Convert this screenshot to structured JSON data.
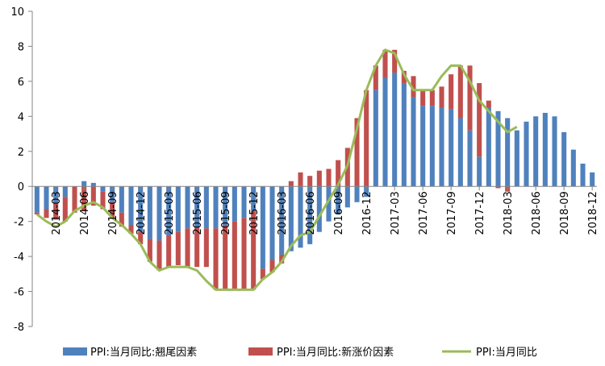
{
  "chart_data": {
    "type": "bar",
    "stacked": true,
    "ylim": [
      -8,
      10
    ],
    "ytick_values": [
      -8,
      -6,
      -4,
      -2,
      0,
      2,
      4,
      6,
      8,
      10
    ],
    "ytick_labels": [
      "-8",
      "-6",
      "-4",
      "-2",
      "0",
      "2",
      "4",
      "6",
      "8",
      "10"
    ],
    "grid": false,
    "legend_position": "bottom",
    "x_tick_labels": [
      "2014-03",
      "2014-06",
      "2014-09",
      "2014-12",
      "2015-03",
      "2015-06",
      "2015-09",
      "2015-12",
      "2016-03",
      "2016-06",
      "2016-09",
      "2016-12",
      "2017-03",
      "2017-06",
      "2017-09",
      "2017-12",
      "2018-03",
      "2018-06",
      "2018-09",
      "2018-12"
    ],
    "categories": [
      "2014-01",
      "2014-02",
      "2014-03",
      "2014-04",
      "2014-05",
      "2014-06",
      "2014-07",
      "2014-08",
      "2014-09",
      "2014-10",
      "2014-11",
      "2014-12",
      "2015-01",
      "2015-02",
      "2015-03",
      "2015-04",
      "2015-05",
      "2015-06",
      "2015-07",
      "2015-08",
      "2015-09",
      "2015-10",
      "2015-11",
      "2015-12",
      "2016-01",
      "2016-02",
      "2016-03",
      "2016-04",
      "2016-05",
      "2016-06",
      "2016-07",
      "2016-08",
      "2016-09",
      "2016-10",
      "2016-11",
      "2016-12",
      "2017-01",
      "2017-02",
      "2017-03",
      "2017-04",
      "2017-05",
      "2017-06",
      "2017-07",
      "2017-08",
      "2017-09",
      "2017-10",
      "2017-11",
      "2017-12",
      "2018-01",
      "2018-02",
      "2018-03",
      "2018-04",
      "2018-05",
      "2018-06",
      "2018-07",
      "2018-08",
      "2018-09",
      "2018-10",
      "2018-11",
      "2018-12"
    ],
    "series": [
      {
        "name": "PPI:当月同比:翘尾因素",
        "kind": "bar",
        "color": "#4F81BD",
        "values": [
          -1.5,
          -1.3,
          -1.0,
          -0.6,
          0.0,
          0.3,
          0.2,
          -0.3,
          -0.9,
          -1.5,
          -2.2,
          -2.6,
          -3.0,
          -3.1,
          -2.8,
          -2.6,
          -2.4,
          -2.3,
          -2.4,
          -2.4,
          -2.2,
          -2.0,
          -1.8,
          -1.4,
          -4.7,
          -4.2,
          -3.9,
          -3.7,
          -3.5,
          -3.3,
          -2.6,
          -2.0,
          -1.6,
          -1.2,
          -0.9,
          -0.6,
          5.5,
          6.2,
          6.5,
          5.9,
          5.1,
          4.6,
          4.6,
          4.5,
          4.4,
          3.9,
          3.2,
          1.7,
          4.5,
          4.3,
          3.9,
          3.2,
          3.7,
          4.0,
          4.2,
          4.0,
          3.1,
          2.1,
          1.3,
          0.8
        ]
      },
      {
        "name": "PPI:当月同比:新涨价因素",
        "kind": "bar",
        "color": "#C0504D",
        "values": [
          -0.1,
          -0.5,
          -0.9,
          -1.4,
          -1.5,
          -1.4,
          -1.1,
          -1.0,
          -0.9,
          -0.8,
          -0.5,
          -0.7,
          -1.3,
          -1.7,
          -1.8,
          -1.9,
          -2.2,
          -2.3,
          -2.2,
          -3.5,
          -3.7,
          -3.9,
          -4.1,
          -4.5,
          -0.6,
          -0.7,
          -0.5,
          0.3,
          0.8,
          0.6,
          0.9,
          1.0,
          1.5,
          2.2,
          3.9,
          5.5,
          1.4,
          1.6,
          1.3,
          0.7,
          1.2,
          0.9,
          0.9,
          1.2,
          2.0,
          3.0,
          3.7,
          4.2,
          0.4,
          -0.1,
          -0.3,
          0.0,
          0.0,
          0.0,
          0.0,
          0.0,
          0.0,
          0.0,
          0.0,
          0.0
        ]
      },
      {
        "name": "PPI:当月同比",
        "kind": "line",
        "color": "#9BBB59",
        "values": [
          -1.6,
          -2.0,
          -2.3,
          -2.0,
          -1.4,
          -1.1,
          -0.9,
          -1.2,
          -1.8,
          -2.2,
          -2.7,
          -3.3,
          -4.3,
          -4.8,
          -4.6,
          -4.6,
          -4.6,
          -4.8,
          -5.4,
          -5.9,
          -5.9,
          -5.9,
          -5.9,
          -5.9,
          -5.3,
          -4.9,
          -4.3,
          -3.4,
          -2.8,
          -2.6,
          -1.7,
          -0.8,
          0.1,
          1.2,
          3.3,
          5.5,
          6.9,
          7.8,
          7.6,
          6.4,
          5.5,
          5.5,
          5.5,
          6.3,
          6.9,
          6.9,
          6.0,
          4.9,
          4.3,
          3.7,
          3.1,
          3.4,
          null,
          null,
          null,
          null,
          null,
          null,
          null,
          null
        ]
      }
    ]
  }
}
